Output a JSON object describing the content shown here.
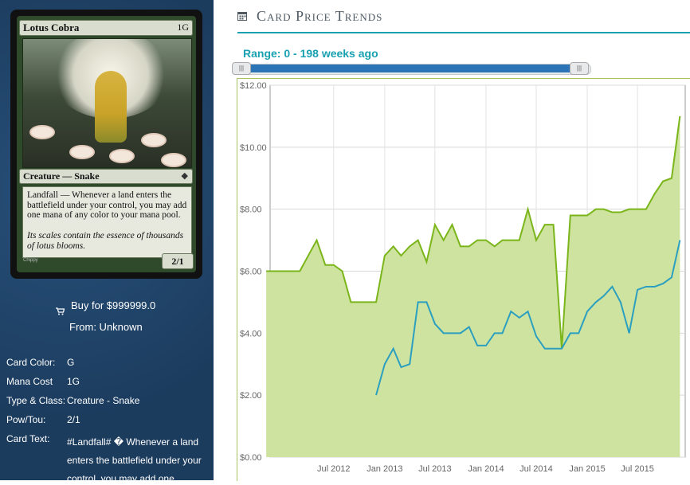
{
  "card": {
    "name": "Lotus Cobra",
    "cost": "1G",
    "type_line": "Creature — Snake",
    "rules_text": "Landfall — Whenever a land enters the battlefield under your control, you may add one mana of any color to your mana pool.",
    "flavor_text": "Its scales contain the essence of thousands of lotus blooms.",
    "pt": "2/1",
    "artist": "Chippy"
  },
  "buy": {
    "icon": "cart-icon",
    "label": "Buy for $999999.0",
    "from": "From: Unknown"
  },
  "attributes": [
    {
      "key": "Card Color:",
      "value": "G"
    },
    {
      "key": "Mana Cost",
      "value": "1G"
    },
    {
      "key": "Type & Class:",
      "value": "Creature - Snake"
    },
    {
      "key": "Pow/Tou:",
      "value": "2/1"
    }
  ],
  "card_text_row": {
    "key": "Card Text:",
    "value": "#Landfall# � Whenever a land enters the battlefield under your control, you may add one"
  },
  "header": {
    "icon": "calendar-icon",
    "title": "Card Price Trends"
  },
  "range": {
    "label": "Range: 0 - 198 weeks ago",
    "start_weeks": 0,
    "end_weeks": 198
  },
  "colors": {
    "accent": "#1aa1b1",
    "series_high": "#7ab51a",
    "series_low": "#2a9fc0",
    "fill": "#cfe3a0",
    "sidebar": "#1f4266"
  },
  "chart_data": {
    "type": "line",
    "title": "",
    "xlabel": "",
    "ylabel": "",
    "ylim": [
      0,
      12
    ],
    "y_ticks": [
      "$0.00",
      "$2.00",
      "$4.00",
      "$6.00",
      "$8.00",
      "$10.00",
      "$12.00"
    ],
    "x_ticks": [
      "Jul 2012",
      "Jan 2013",
      "Jul 2013",
      "Jan 2014",
      "Jul 2014",
      "Jan 2015",
      "Jul 2015"
    ],
    "grid": true,
    "series": [
      {
        "key": "high",
        "x": [
          "2011-11",
          "2012-03",
          "2012-05",
          "2012-06",
          "2012-07",
          "2012-08",
          "2012-09",
          "2012-10",
          "2012-11",
          "2012-12",
          "2013-01",
          "2013-02",
          "2013-03",
          "2013-04",
          "2013-05",
          "2013-06",
          "2013-07",
          "2013-08",
          "2013-09",
          "2013-10",
          "2013-11",
          "2013-12",
          "2014-01",
          "2014-02",
          "2014-03",
          "2014-04",
          "2014-05",
          "2014-06",
          "2014-07",
          "2014-08",
          "2014-09",
          "2014-10",
          "2014-11",
          "2014-12",
          "2015-01",
          "2015-02",
          "2015-03",
          "2015-04",
          "2015-05",
          "2015-06",
          "2015-07",
          "2015-08",
          "2015-09",
          "2015-10",
          "2015-11",
          "2015-12"
        ],
        "values": [
          6.0,
          6.0,
          7.0,
          6.2,
          6.2,
          6.0,
          5.0,
          5.0,
          5.0,
          5.0,
          6.5,
          6.8,
          6.5,
          6.8,
          7.0,
          6.3,
          7.5,
          7.0,
          7.5,
          6.8,
          6.8,
          7.0,
          7.0,
          6.8,
          7.0,
          7.0,
          7.0,
          8.0,
          7.0,
          7.5,
          7.5,
          3.5,
          7.8,
          7.8,
          7.8,
          8.0,
          8.0,
          7.9,
          7.9,
          8.0,
          8.0,
          8.0,
          8.5,
          8.9,
          9.0,
          11.0
        ]
      },
      {
        "key": "low",
        "x": [
          "2012-12",
          "2013-01",
          "2013-02",
          "2013-03",
          "2013-04",
          "2013-05",
          "2013-06",
          "2013-07",
          "2013-08",
          "2013-09",
          "2013-10",
          "2013-11",
          "2013-12",
          "2014-01",
          "2014-02",
          "2014-03",
          "2014-04",
          "2014-05",
          "2014-06",
          "2014-07",
          "2014-08",
          "2014-09",
          "2014-10",
          "2014-11",
          "2014-12",
          "2015-01",
          "2015-02",
          "2015-03",
          "2015-04",
          "2015-05",
          "2015-06",
          "2015-07",
          "2015-08",
          "2015-09",
          "2015-10",
          "2015-11",
          "2015-12"
        ],
        "values": [
          2.0,
          3.0,
          3.5,
          2.9,
          3.0,
          5.0,
          5.0,
          4.3,
          4.0,
          4.0,
          4.0,
          4.2,
          3.6,
          3.6,
          4.0,
          4.0,
          4.7,
          4.5,
          4.7,
          3.9,
          3.5,
          3.5,
          3.5,
          4.0,
          4.0,
          4.7,
          5.0,
          5.2,
          5.5,
          5.0,
          4.0,
          5.4,
          5.5,
          5.5,
          5.6,
          5.8,
          7.0
        ]
      }
    ]
  }
}
